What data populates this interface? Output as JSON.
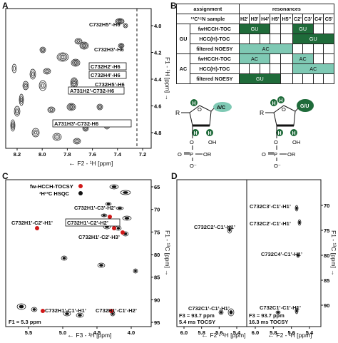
{
  "colors": {
    "dark_green": "#1f6b3a",
    "light_green": "#7fc9b4",
    "red_peak": "#d01818",
    "black": "#111111"
  },
  "panel_a": {
    "label": "A",
    "x_axis_title": "F2 - ¹H [ppm]",
    "y_axis_title": "F1 - ¹H [ppm]",
    "x_ticks": [
      "8.2",
      "8.0",
      "7.8",
      "7.6",
      "7.4",
      "7.2"
    ],
    "y_ticks": [
      "4.0",
      "4.2",
      "4.4",
      "4.6",
      "4.8"
    ],
    "annotations": [
      "C732H5’’-H6",
      "C732H3’-H6",
      "C732H2’-H6",
      "C732H4’-H6",
      "C732H5’-H6",
      "A731H2’-C732-H6",
      "A731H3’-C732-H6"
    ]
  },
  "panel_b": {
    "label": "B",
    "table": {
      "header_assignment": "assignment",
      "header_resonances": "resonances",
      "header_sample": "¹³C¹⁵N sample",
      "columns": [
        "H2'",
        "H3'",
        "H4'",
        "H5'",
        "H5''",
        "C2'",
        "C3'",
        "C4'",
        "C5'"
      ],
      "groups": [
        {
          "name": "GU",
          "rows": [
            "fwHCCH-TOC",
            "HCC(H)-TOC",
            "filtered NOESY"
          ]
        },
        {
          "name": "AC",
          "rows": [
            "fwHCCH-TOC",
            "HCC(H)-TOC",
            "filtered NOESY"
          ]
        }
      ],
      "cell_labels": {
        "gu_fw_h": "GU",
        "gu_fw_c": "GU",
        "gu_hcc_c": "GU",
        "gu_noesy": "AC",
        "ac_fw_h": "AC",
        "ac_fw_c": "AC",
        "ac_hcc_c": "AC",
        "ac_noesy": "GU"
      }
    },
    "struct_left": {
      "r": "R",
      "h": "H",
      "o_ring": "O",
      "base": "A/C",
      "oh": "OH",
      "o_link": "O",
      "p": "P",
      "or": "OR",
      "o_double": "O",
      "o_minus": "O⁻"
    },
    "struct_right": {
      "r": "R",
      "h": "H",
      "o_ring": "O",
      "base": "G/U",
      "oh": "OH",
      "o_link": "O",
      "p": "P",
      "or": "OR",
      "o_double": "O",
      "o_minus": "O⁻"
    }
  },
  "panel_c": {
    "label": "C",
    "x_axis_title": "F3 - ¹H [ppm]",
    "y_axis_title": "F1 - ¹³C [ppm]",
    "x_ticks": [
      "5.5",
      "5.0",
      "4.5",
      "4.0"
    ],
    "y_ticks": [
      "65",
      "70",
      "75",
      "80",
      "85",
      "90",
      "95"
    ],
    "legend": [
      {
        "label": "fw-HCCH-TOCSY",
        "color": "#d01818"
      },
      {
        "label": "¹H¹³C HSQC",
        "color": "#111111"
      }
    ],
    "annotations": [
      "C732H1’-C3’-H2’",
      "C732H1’-C2’-H2’",
      "C732H1’-C2’-H1’",
      "C732H1’-C2’-H3’",
      "C732H1’-C1’-H1’",
      "C732H1’-C1’-H2’"
    ],
    "f1_note": "F1 = 5.3 ppm"
  },
  "panel_d": {
    "label": "D",
    "x_axis_title": "F2 - ¹H [ppm]",
    "y_axis_title": "F1 - ¹³C [ppm]",
    "left_x_ticks": [
      "6.0",
      "5.8",
      "5.6",
      "5.4"
    ],
    "right_x_ticks": [
      "6.0",
      "5.8",
      "5.6",
      "5.4"
    ],
    "y_ticks": [
      "70",
      "75",
      "80",
      "85",
      "90"
    ],
    "left_annotations": [
      "C732C2’-C1’-H1’",
      "C732C1’-C1’-H1’"
    ],
    "right_annotations": [
      "C732C3’-C1’-H1’",
      "C732C2’-C1’-H1’",
      "C732C4’-C1’-H1’",
      "C732C1’-C1’-H1’"
    ],
    "left_note_1": "F3 = 93.7 ppm",
    "left_note_2": "5.4 ms TOCSY",
    "right_note_1": "F3 = 93.7 ppm",
    "right_note_2": "16.3 ms TOCSY"
  }
}
